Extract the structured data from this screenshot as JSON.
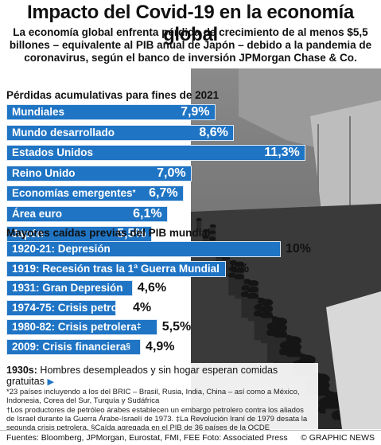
{
  "title": "Impacto del Covid-19 en la economía global",
  "subtitle": "La economía global enfrenta pérdida de crecimiento de al menos $5,5 billones – equivalente al PIB anual de Japón – debido a la pandemia de coronavirus, según el banco de inversión JPMorgan Chase & Co.",
  "chart_data": [
    {
      "type": "bar",
      "title": "Pérdidas acumulativas para fines de 2021",
      "categories": [
        "Mundiales",
        "Mundo desarrollado",
        "Estados Unidos",
        "Reino Unido",
        "Economías emergentes",
        "Área euro",
        "Japón"
      ],
      "category_marks": [
        "",
        "",
        "",
        "",
        "*",
        "",
        ""
      ],
      "values": [
        7.9,
        8.6,
        11.3,
        7.0,
        6.7,
        6.1,
        5.5
      ],
      "value_labels": [
        "7,9%",
        "8,6%",
        "11,3%",
        "7,0%",
        "6,7%",
        "6,1%",
        "5,5%"
      ],
      "unit": "%",
      "color": "#1f74c4"
    },
    {
      "type": "bar",
      "title": "Mayores caídas previas del PIB mundial",
      "categories": [
        "1920-21: Depresión",
        "1919: Recesión tras la 1ª Guerra Mundial",
        "1931: Gran Depresión",
        "1974-75: Crisis petrol.",
        "1980-82: Crisis petrolera",
        "2009: Crisis financiera"
      ],
      "category_marks": [
        "",
        "",
        "",
        "†",
        "‡",
        "§"
      ],
      "values": [
        10,
        8,
        4.6,
        4,
        5.5,
        4.9
      ],
      "value_labels": [
        "10%",
        "8%",
        "4,6%",
        "4%",
        "5,5%",
        "4,9%"
      ],
      "unit": "%",
      "color": "#1f74c4"
    }
  ],
  "caption": {
    "year": "1930s:",
    "text": " Hombres desempleados y sin hogar esperan comidas gratuitas",
    "arrow": "▶",
    "note1": "*23 países incluyendo a los del BRIC – Brasil, Rusia, India, China – así como a México, Indonesia, Corea del Sur, Turquía y Sudáfrica",
    "note2": "†Los productores de petróleo árabes establecen un embargo petrolero contra los aliados de Israel durante la Guerra Árabe-Israelí de 1973. ‡La Revolución Iraní de 1979 desata la segunda crisis petrolera. §Caída agregada en el PIB de 36 países de la OCDE"
  },
  "footer": {
    "sources": "Fuentes: Bloomberg, JPMorgan, Eurostat, FMI, FEE   Foto: Associated Press",
    "credit": "© GRAPHIC NEWS"
  },
  "colors": {
    "bar": "#1f74c4",
    "bar_border": "#dbe8f6"
  },
  "icons": {
    "caption-arrow": "right-triangle-icon"
  }
}
